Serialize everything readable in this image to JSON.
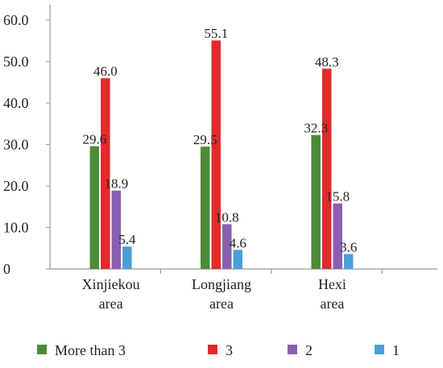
{
  "chart_data": {
    "type": "bar",
    "title": "",
    "xlabel": "",
    "ylabel": "",
    "ylim": [
      0,
      60
    ],
    "yticks": [
      "0",
      "10.0",
      "20.0",
      "30.0",
      "40.0",
      "50.0",
      "60.0"
    ],
    "grid": false,
    "legend_position": "bottom",
    "categories": [
      [
        "Xinjiekou",
        "area"
      ],
      [
        "Longjiang",
        "area"
      ],
      [
        "Hexi",
        "area"
      ]
    ],
    "series": [
      {
        "name": "More than 3",
        "color": "#4e8a3a",
        "values": [
          29.6,
          29.5,
          32.3
        ],
        "labels": [
          "29.6",
          "29.5",
          "32.3"
        ]
      },
      {
        "name": "3",
        "color": "#e02b2b",
        "values": [
          46.0,
          55.1,
          48.3
        ],
        "labels": [
          "46.0",
          "55.1",
          "48.3"
        ]
      },
      {
        "name": "2",
        "color": "#8a5fb0",
        "values": [
          18.9,
          10.8,
          15.8
        ],
        "labels": [
          "18.9",
          "10.8",
          "15.8"
        ]
      },
      {
        "name": "1",
        "color": "#4a9fd8",
        "values": [
          5.4,
          4.6,
          3.6
        ],
        "labels": [
          "5.4",
          "4.6",
          "3.6"
        ]
      }
    ]
  }
}
